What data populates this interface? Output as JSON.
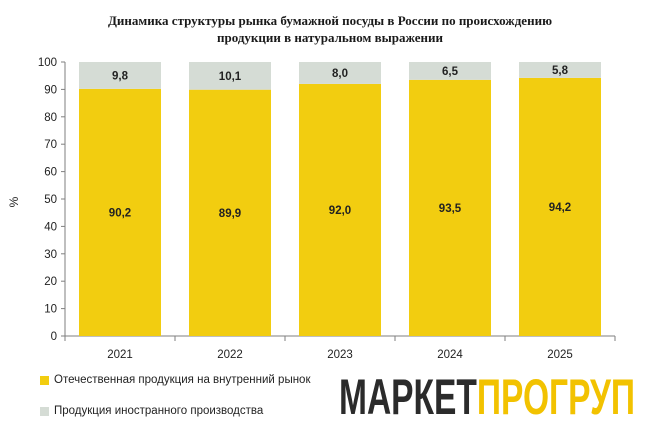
{
  "title_line1": "Динамика структуры рынка бумажной посуды в России по происхождению",
  "title_line2": "продукции  в натуральном выражении",
  "logo_text_part1": "МАРКЕТ",
  "logo_text_part2": "ПРОГРУП",
  "colors": {
    "domestic": "#F2CD10",
    "foreign": "#D5DCD5",
    "accent": "#F2C200",
    "logo_dark": "#2b2b2b"
  },
  "chart_data": {
    "type": "bar",
    "stacked": true,
    "categories": [
      "2021",
      "2022",
      "2023",
      "2024",
      "2025"
    ],
    "series": [
      {
        "name": "Отечественная продукция на внутренний рынок",
        "values": [
          90.2,
          89.9,
          92.0,
          93.5,
          94.2
        ],
        "labels": [
          "90,2",
          "89,9",
          "92,0",
          "93,5",
          "94,2"
        ]
      },
      {
        "name": "Продукция иностранного производства",
        "values": [
          9.8,
          10.1,
          8.0,
          6.5,
          5.8
        ],
        "labels": [
          "9,8",
          "10,1",
          "8,0",
          "6,5",
          "5,8"
        ]
      }
    ],
    "ylabel": "%",
    "ylim": [
      0,
      100
    ],
    "yticks": [
      "0",
      "10",
      "20",
      "30",
      "40",
      "50",
      "60",
      "70",
      "80",
      "90",
      "100"
    ],
    "grid": false,
    "legend_position": "bottom-left"
  }
}
